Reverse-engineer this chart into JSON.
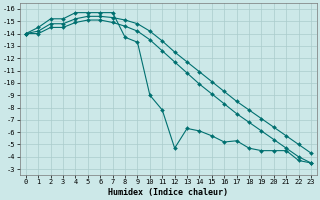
{
  "xlabel": "Humidex (Indice chaleur)",
  "xlim": [
    -0.5,
    23.5
  ],
  "ylim": [
    -16.5,
    -2.5
  ],
  "yticks": [
    -3,
    -4,
    -5,
    -6,
    -7,
    -8,
    -9,
    -10,
    -11,
    -12,
    -13,
    -14,
    -15,
    -16
  ],
  "xticks": [
    0,
    1,
    2,
    3,
    4,
    5,
    6,
    7,
    8,
    9,
    10,
    11,
    12,
    13,
    14,
    15,
    16,
    17,
    18,
    19,
    20,
    21,
    22,
    23
  ],
  "bg_color": "#cce8e8",
  "grid_color": "#aacccc",
  "line_color": "#007070",
  "jagged_x": [
    0,
    1,
    2,
    3,
    4,
    5,
    6,
    7,
    8,
    9,
    10,
    11,
    12,
    13,
    14,
    15,
    16,
    17,
    18,
    19,
    20,
    21,
    22,
    23
  ],
  "jagged_y": [
    -14.0,
    -14.5,
    -15.2,
    -15.2,
    -15.7,
    -15.7,
    -15.7,
    -15.7,
    -13.7,
    -13.3,
    -9.0,
    -7.8,
    -4.7,
    -6.3,
    -6.1,
    -5.7,
    -5.2,
    -5.3,
    -4.7,
    -4.5,
    -4.5,
    -4.5,
    -3.7,
    -3.5
  ],
  "low_x": [
    0,
    1,
    2,
    3,
    4,
    5,
    6,
    7,
    8,
    9,
    10,
    11,
    12,
    13,
    14,
    15,
    16,
    17,
    18,
    19,
    20,
    21,
    22,
    23
  ],
  "low_y": [
    -14.0,
    -14.2,
    -14.8,
    -14.8,
    -15.2,
    -15.4,
    -15.4,
    -15.3,
    -15.1,
    -14.8,
    -14.2,
    -13.4,
    -12.5,
    -11.7,
    -10.9,
    -10.1,
    -9.3,
    -8.5,
    -7.8,
    -7.1,
    -6.4,
    -5.7,
    -5.0,
    -4.3
  ],
  "up_x": [
    0,
    1,
    2,
    3,
    4,
    5,
    6,
    7,
    8,
    9,
    10,
    11,
    12,
    13,
    14,
    15,
    16,
    17,
    18,
    19,
    20,
    21,
    22,
    23
  ],
  "up_y": [
    -14.0,
    -14.0,
    -14.5,
    -14.5,
    -14.9,
    -15.1,
    -15.1,
    -14.9,
    -14.6,
    -14.2,
    -13.5,
    -12.6,
    -11.7,
    -10.8,
    -9.9,
    -9.1,
    -8.3,
    -7.5,
    -6.8,
    -6.1,
    -5.4,
    -4.7,
    -4.0,
    -3.5
  ],
  "marker_size": 2.0,
  "line_width": 0.8,
  "tick_fontsize": 5.0,
  "xlabel_fontsize": 6.0
}
